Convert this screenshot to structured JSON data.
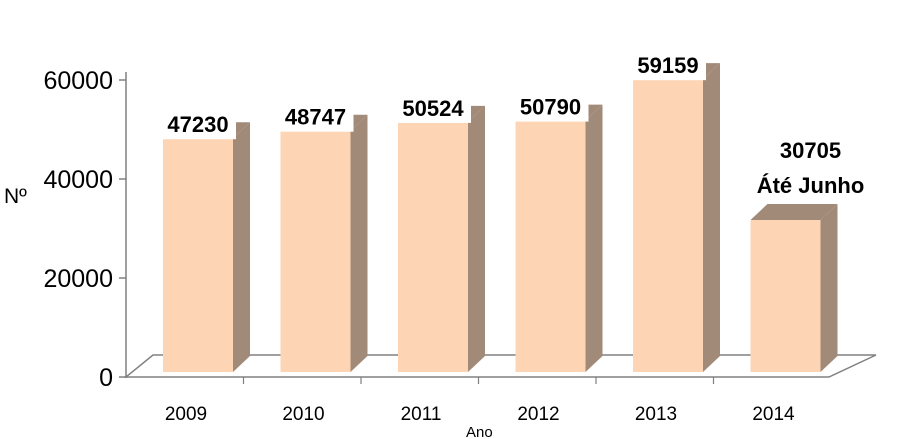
{
  "chart_data": {
    "type": "bar",
    "categories": [
      "2009",
      "2010",
      "2011",
      "2012",
      "2013",
      "2014"
    ],
    "values": [
      47230,
      48747,
      50524,
      50790,
      59159,
      30705
    ],
    "data_labels": [
      "47230",
      "48747",
      "50524",
      "50790",
      "59159",
      "30705"
    ],
    "annotations": [
      "",
      "",
      "",
      "",
      "",
      "Áté Junho"
    ],
    "xlabel": "Ano",
    "ylabel": "Nº",
    "yticks": [
      "0",
      "20000",
      "40000",
      "60000"
    ],
    "ylim": [
      0,
      60000
    ],
    "grid": false,
    "legend": "none",
    "colors": {
      "bar_front": "#FDD5B5",
      "bar_side": "#A28A78",
      "axis": "#808080"
    }
  }
}
